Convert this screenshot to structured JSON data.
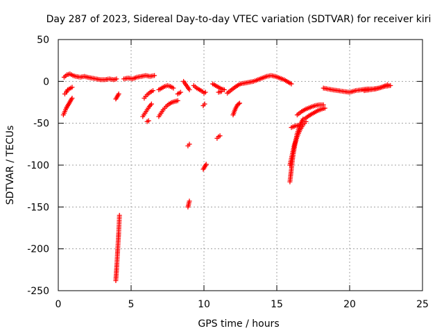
{
  "chart_data": {
    "type": "scatter",
    "title": "Day 287 of 2023, Sidereal Day-to-day VTEC variation (SDTVAR) for receiver kiri",
    "xlabel": "GPS time / hours",
    "ylabel": "SDTVAR / TECUs",
    "xlim": [
      0,
      25
    ],
    "ylim": [
      -250,
      50
    ],
    "xticks": [
      0,
      5,
      10,
      15,
      20,
      25
    ],
    "yticks": [
      -250,
      -200,
      -150,
      -100,
      -50,
      0,
      50
    ],
    "xtick_labels": [
      "0",
      "5",
      "10",
      "15",
      "20",
      "25"
    ],
    "ytick_labels": [
      "-250",
      "-200",
      "-150",
      "-100",
      "-50",
      "0",
      "50"
    ],
    "grid": true,
    "legend": "none",
    "marker": "plus",
    "color": "#ff0000",
    "segments": [
      {
        "x": [
          0.4,
          0.6,
          0.8,
          1.0,
          1.2,
          1.5,
          1.8,
          2.0,
          2.3,
          2.6,
          2.9,
          3.2,
          3.5,
          3.8,
          4.0
        ],
        "y": [
          5,
          8,
          9,
          7,
          6,
          5,
          6,
          5,
          4,
          3,
          2,
          2,
          3,
          2,
          3
        ]
      },
      {
        "x": [
          0.45,
          0.55,
          0.65,
          0.75,
          0.85,
          0.95
        ],
        "y": [
          -15,
          -13,
          -10,
          -9,
          -8,
          -7
        ]
      },
      {
        "x": [
          0.35,
          0.45,
          0.55,
          0.65,
          0.75,
          0.85,
          0.95
        ],
        "y": [
          -40,
          -36,
          -32,
          -29,
          -26,
          -23,
          -20
        ]
      },
      {
        "x": [
          3.95,
          4.05,
          4.15
        ],
        "y": [
          -21,
          -18,
          -15
        ]
      },
      {
        "x": [
          3.95,
          4.0,
          4.05,
          4.1,
          4.15,
          4.2
        ],
        "y": [
          -238,
          -225,
          -210,
          -195,
          -180,
          -160
        ]
      },
      {
        "x": [
          4.5,
          4.8,
          5.1,
          5.4,
          5.7,
          6.0,
          6.3,
          6.6
        ],
        "y": [
          3,
          4,
          3,
          5,
          6,
          7,
          6,
          7
        ]
      },
      {
        "x": [
          5.9,
          6.1,
          6.3,
          6.5
        ],
        "y": [
          -20,
          -16,
          -13,
          -11
        ]
      },
      {
        "x": [
          5.8,
          5.95,
          6.1,
          6.25,
          6.4
        ],
        "y": [
          -42,
          -38,
          -34,
          -30,
          -27
        ]
      },
      {
        "x": [
          6.1,
          6.2
        ],
        "y": [
          -48,
          -47
        ]
      },
      {
        "x": [
          6.9,
          7.05,
          7.2,
          7.4,
          7.6,
          7.8,
          8.0,
          8.2
        ],
        "y": [
          -42,
          -38,
          -34,
          -30,
          -27,
          -25,
          -24,
          -23
        ]
      },
      {
        "x": [
          6.9,
          7.1,
          7.3,
          7.5,
          7.7,
          7.9
        ],
        "y": [
          -10,
          -8,
          -6,
          -5,
          -6,
          -8
        ]
      },
      {
        "x": [
          8.2,
          8.4
        ],
        "y": [
          -15,
          -13
        ]
      },
      {
        "x": [
          8.6,
          8.8,
          9.0
        ],
        "y": [
          0,
          -5,
          -10
        ]
      },
      {
        "x": [
          8.9,
          9.0
        ],
        "y": [
          -77,
          -75
        ]
      },
      {
        "x": [
          8.9,
          9.0
        ],
        "y": [
          -150,
          -143
        ]
      },
      {
        "x": [
          9.3,
          9.5,
          9.7,
          9.9,
          10.0,
          10.1
        ],
        "y": [
          -5,
          -8,
          -10,
          -12,
          -14,
          -13
        ]
      },
      {
        "x": [
          9.95,
          10.05
        ],
        "y": [
          -29,
          -27
        ]
      },
      {
        "x": [
          9.95,
          10.05,
          10.15
        ],
        "y": [
          -105,
          -102,
          -99
        ]
      },
      {
        "x": [
          10.6,
          10.8,
          11.0,
          11.2,
          11.4
        ],
        "y": [
          -3,
          -5,
          -7,
          -9,
          -10
        ]
      },
      {
        "x": [
          10.9,
          11.0,
          11.1
        ],
        "y": [
          -68,
          -66,
          -65
        ]
      },
      {
        "x": [
          11.0,
          11.2
        ],
        "y": [
          -13,
          -12
        ]
      },
      {
        "x": [
          11.6,
          11.9,
          12.2,
          12.5,
          12.8,
          13.1,
          13.4,
          13.7,
          14.0,
          14.3,
          14.6,
          14.9,
          15.2,
          15.5,
          15.8,
          16.0
        ],
        "y": [
          -14,
          -10,
          -6,
          -3,
          -2,
          -1,
          0,
          2,
          4,
          6,
          7,
          6,
          4,
          2,
          -1,
          -3
        ]
      },
      {
        "x": [
          12.0,
          12.15,
          12.3,
          12.45
        ],
        "y": [
          -40,
          -33,
          -28,
          -26
        ]
      },
      {
        "x": [
          15.9,
          16.0,
          16.1,
          16.25,
          16.4,
          16.6,
          16.8
        ],
        "y": [
          -120,
          -105,
          -90,
          -75,
          -62,
          -52,
          -45
        ]
      },
      {
        "x": [
          15.9,
          16.05,
          16.2,
          16.4,
          16.6,
          16.8,
          17.0
        ],
        "y": [
          -100,
          -88,
          -76,
          -66,
          -58,
          -52,
          -48
        ]
      },
      {
        "x": [
          16.4,
          16.7,
          17.0,
          17.3,
          17.6,
          17.9,
          18.2
        ],
        "y": [
          -40,
          -36,
          -33,
          -31,
          -29,
          -28,
          -28
        ]
      },
      {
        "x": [
          16.9,
          17.2,
          17.5,
          17.8,
          18.1,
          18.3
        ],
        "y": [
          -45,
          -41,
          -38,
          -35,
          -33,
          -32
        ]
      },
      {
        "x": [
          16.0,
          16.3,
          16.6
        ],
        "y": [
          -55,
          -53,
          -52
        ]
      },
      {
        "x": [
          18.2,
          18.5,
          18.8,
          19.2,
          19.6,
          20.0,
          20.4,
          20.8,
          21.2,
          21.6,
          22.0,
          22.4,
          22.8
        ],
        "y": [
          -8,
          -9,
          -10,
          -11,
          -12,
          -13,
          -11,
          -10,
          -9,
          -9,
          -8,
          -6,
          -5
        ]
      },
      {
        "x": [
          21.0,
          21.4,
          21.8,
          22.2,
          22.6
        ],
        "y": [
          -11,
          -10,
          -9,
          -7,
          -4
        ]
      }
    ]
  }
}
